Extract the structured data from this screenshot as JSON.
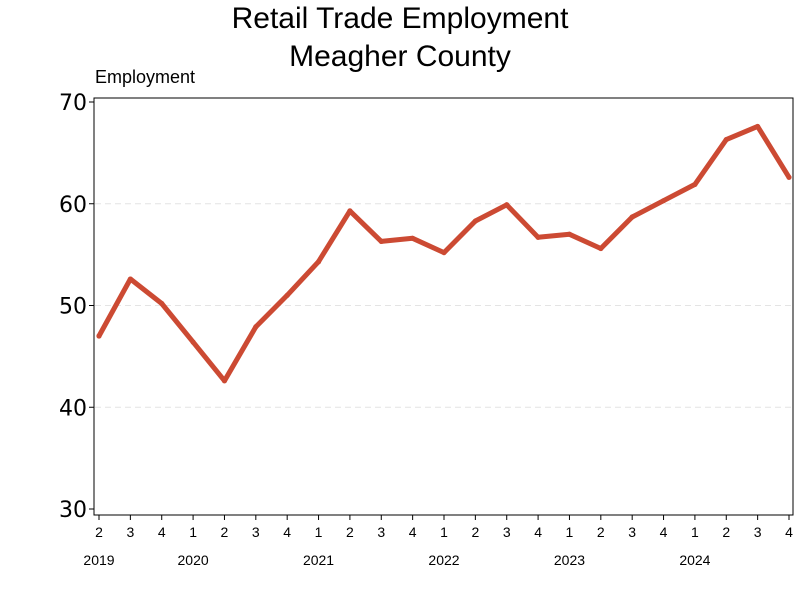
{
  "chart_data": {
    "type": "line",
    "title_lines": [
      "Retail Trade Employment",
      "Meagher County"
    ],
    "xlabel": "",
    "ylabel": "Employment",
    "ylim": [
      30,
      70
    ],
    "yticks": [
      30,
      40,
      50,
      60,
      70
    ],
    "grid": "horizontal dashed",
    "line_color": "#cc4a33",
    "quarters": [
      "2",
      "3",
      "4",
      "1",
      "2",
      "3",
      "4",
      "1",
      "2",
      "3",
      "4",
      "1",
      "2",
      "3",
      "4",
      "1",
      "2",
      "3",
      "4",
      "1",
      "2",
      "3",
      "4"
    ],
    "years": [
      {
        "label": "2019",
        "start_index": 0
      },
      {
        "label": "2020",
        "start_index": 3
      },
      {
        "label": "2021",
        "start_index": 7
      },
      {
        "label": "2022",
        "start_index": 11
      },
      {
        "label": "2023",
        "start_index": 15
      },
      {
        "label": "2024",
        "start_index": 19
      }
    ],
    "series": [
      {
        "values": [
          47.0,
          52.6,
          50.2,
          46.4,
          42.6,
          47.9,
          51.0,
          54.3,
          59.3,
          56.3,
          56.6,
          55.2,
          58.3,
          59.9,
          56.7,
          57.0,
          55.6,
          58.7,
          60.3,
          61.9,
          66.3,
          67.6,
          62.6
        ]
      }
    ]
  }
}
